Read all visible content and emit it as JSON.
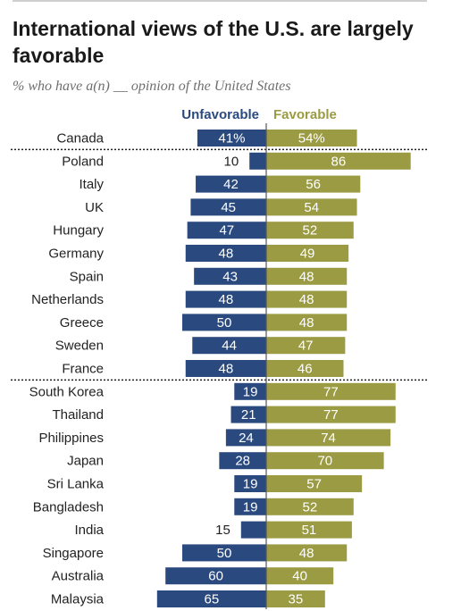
{
  "title": "International views of the U.S. are largely favorable",
  "subtitle": "% who have a(n) __ opinion of the United States",
  "colors": {
    "unfavorable": "#2a4a7f",
    "favorable": "#9b9b44",
    "axis": "#555555"
  },
  "chart_data": {
    "type": "bar",
    "orientation": "horizontal-diverging",
    "title": "International views of the U.S. are largely favorable",
    "subtitle": "% who have a(n) __ opinion of the United States",
    "legend": {
      "placement": "top",
      "entries": [
        "Unfavorable",
        "Favorable"
      ]
    },
    "categories": [
      "Canada",
      "Poland",
      "Italy",
      "UK",
      "Hungary",
      "Germany",
      "Spain",
      "Netherlands",
      "Greece",
      "Sweden",
      "France",
      "South Korea",
      "Thailand",
      "Philippines",
      "Japan",
      "Sri Lanka",
      "Bangladesh",
      "India",
      "Singapore",
      "Australia",
      "Malaysia"
    ],
    "series": [
      {
        "name": "Unfavorable",
        "values": [
          41,
          10,
          42,
          45,
          47,
          48,
          43,
          48,
          50,
          44,
          48,
          19,
          21,
          24,
          28,
          19,
          19,
          15,
          50,
          60,
          65
        ]
      },
      {
        "name": "Favorable",
        "values": [
          54,
          86,
          56,
          54,
          52,
          49,
          48,
          48,
          48,
          47,
          46,
          77,
          77,
          74,
          70,
          57,
          52,
          51,
          48,
          40,
          35
        ]
      }
    ],
    "value_labels": {
      "Unfavorable": [
        "41%",
        "10",
        "42",
        "45",
        "47",
        "48",
        "43",
        "48",
        "50",
        "44",
        "48",
        "19",
        "21",
        "24",
        "28",
        "19",
        "19",
        "15",
        "50",
        "60",
        "65"
      ],
      "Favorable": [
        "54%",
        "86",
        "56",
        "54",
        "52",
        "49",
        "48",
        "48",
        "48",
        "47",
        "46",
        "77",
        "77",
        "74",
        "70",
        "57",
        "52",
        "51",
        "48",
        "40",
        "35"
      ]
    },
    "group_separators_after": [
      "Canada",
      "France"
    ]
  }
}
